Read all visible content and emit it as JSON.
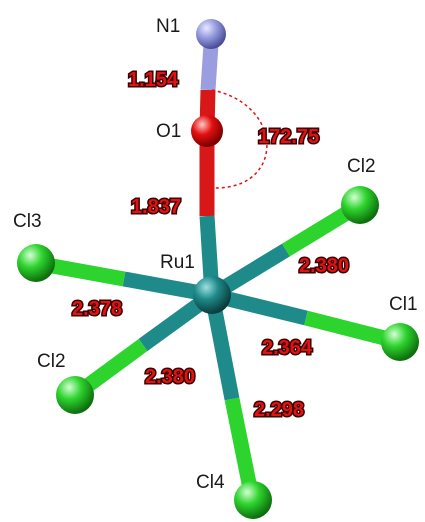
{
  "molecule": {
    "atoms": {
      "N1": {
        "label": "N1",
        "color": "#9a9ee0"
      },
      "O1": {
        "label": "O1",
        "color": "#e41010"
      },
      "Ru1": {
        "label": "Ru1",
        "color": "#1f8a8a"
      },
      "Cl1": {
        "label": "Cl1",
        "color": "#2ed42e"
      },
      "Cl2a": {
        "label": "Cl2",
        "color": "#2ed42e"
      },
      "Cl2b": {
        "label": "Cl2",
        "color": "#2ed42e"
      },
      "Cl3": {
        "label": "Cl3",
        "color": "#2ed42e"
      },
      "Cl4": {
        "label": "Cl4",
        "color": "#2ed42e"
      }
    },
    "measurements": {
      "N1_O1": "1.154",
      "O1_Ru1": "1.837",
      "angle_N1_O1_Ru1": "172.75",
      "Ru1_Cl2a": "2.380",
      "Ru1_Cl1": "2.364",
      "Ru1_Cl3": "2.378",
      "Ru1_Cl2b": "2.380",
      "Ru1_Cl4": "2.298"
    },
    "colors": {
      "measurement_text": "#e01212",
      "angle_arc": "#e01212",
      "bond_ru_half": "#1f8a8a",
      "bond_cl_half": "#2ed42e"
    }
  }
}
